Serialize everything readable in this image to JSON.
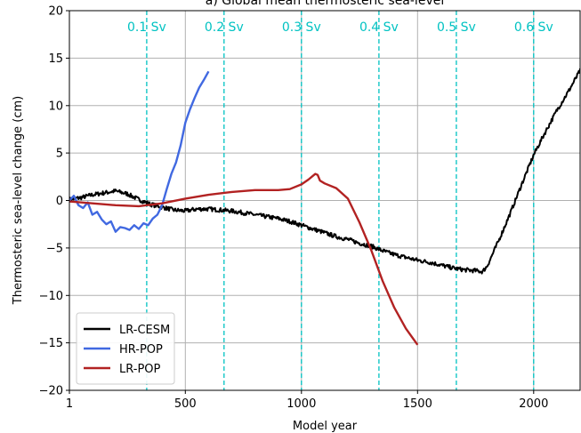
{
  "chart_data": {
    "type": "line",
    "title": "a) Global mean thermosteric sea-level",
    "xlabel": "Model year",
    "ylabel": "Thermosteric sea-level change (cm)",
    "xlim": [
      1,
      2200
    ],
    "ylim": [
      -20,
      20
    ],
    "x_ticks": [
      1,
      500,
      1000,
      1500,
      2000
    ],
    "y_ticks": [
      -20,
      -15,
      -10,
      -5,
      0,
      5,
      10,
      15,
      20
    ],
    "x_tick_labels": [
      "1",
      "500",
      "1000",
      "1500",
      "2000"
    ],
    "y_tick_labels": [
      "−20",
      "−15",
      "−10",
      "−5",
      "0",
      "5",
      "10",
      "15",
      "20"
    ],
    "grid": true,
    "legend_position": "lower-left",
    "forcing_markers": [
      {
        "label": "0.1 Sv",
        "x": 334
      },
      {
        "label": "0.2 Sv",
        "x": 667
      },
      {
        "label": "0.3 Sv",
        "x": 1000
      },
      {
        "label": "0.4 Sv",
        "x": 1334
      },
      {
        "label": "0.5 Sv",
        "x": 1667
      },
      {
        "label": "0.6 Sv",
        "x": 2000
      }
    ],
    "marker_color": "#00c2c2",
    "series": [
      {
        "name": "LR-CESM",
        "color": "#000000",
        "noisy": true,
        "x": [
          1,
          50,
          100,
          150,
          200,
          250,
          300,
          350,
          400,
          450,
          500,
          550,
          600,
          650,
          700,
          750,
          800,
          850,
          900,
          950,
          1000,
          1050,
          1100,
          1150,
          1200,
          1250,
          1300,
          1350,
          1400,
          1450,
          1500,
          1550,
          1600,
          1650,
          1700,
          1750,
          1780,
          1800,
          1850,
          1900,
          1950,
          2000,
          2050,
          2100,
          2150,
          2200
        ],
        "y": [
          0.1,
          0.3,
          0.6,
          0.8,
          1.0,
          0.7,
          0.1,
          -0.4,
          -0.7,
          -1.0,
          -1.1,
          -0.9,
          -0.9,
          -1.0,
          -1.1,
          -1.3,
          -1.5,
          -1.7,
          -1.9,
          -2.2,
          -2.6,
          -3.0,
          -3.4,
          -3.8,
          -4.1,
          -4.5,
          -4.8,
          -5.3,
          -5.7,
          -6.0,
          -6.3,
          -6.5,
          -6.8,
          -7.1,
          -7.3,
          -7.4,
          -7.5,
          -6.9,
          -4.2,
          -1.3,
          1.8,
          4.8,
          7.2,
          9.5,
          11.5,
          13.7
        ]
      },
      {
        "name": "HR-POP",
        "color": "#4169e1",
        "noisy": false,
        "x": [
          1,
          20,
          40,
          60,
          80,
          100,
          120,
          140,
          160,
          180,
          200,
          220,
          240,
          260,
          280,
          300,
          320,
          340,
          360,
          380,
          400,
          420,
          440,
          460,
          480,
          500,
          520,
          540,
          560,
          580,
          600
        ],
        "y": [
          0.0,
          0.5,
          -0.5,
          -0.8,
          -0.2,
          -1.5,
          -1.2,
          -2.0,
          -2.5,
          -2.2,
          -3.3,
          -2.8,
          -2.9,
          -3.1,
          -2.6,
          -3.0,
          -2.4,
          -2.6,
          -1.9,
          -1.5,
          -0.5,
          1.2,
          2.8,
          4.0,
          5.8,
          8.2,
          9.6,
          10.8,
          11.9,
          12.7,
          13.6
        ]
      },
      {
        "name": "LR-POP",
        "color": "#b22222",
        "noisy": false,
        "x": [
          1,
          100,
          200,
          300,
          400,
          500,
          600,
          700,
          800,
          900,
          950,
          1000,
          1030,
          1050,
          1060,
          1070,
          1080,
          1100,
          1150,
          1200,
          1250,
          1300,
          1350,
          1400,
          1450,
          1500
        ],
        "y": [
          -0.1,
          -0.3,
          -0.5,
          -0.6,
          -0.3,
          0.2,
          0.6,
          0.9,
          1.1,
          1.1,
          1.2,
          1.7,
          2.2,
          2.6,
          2.8,
          2.7,
          2.1,
          1.8,
          1.3,
          0.2,
          -2.3,
          -5.2,
          -8.5,
          -11.3,
          -13.5,
          -15.2
        ]
      }
    ]
  }
}
